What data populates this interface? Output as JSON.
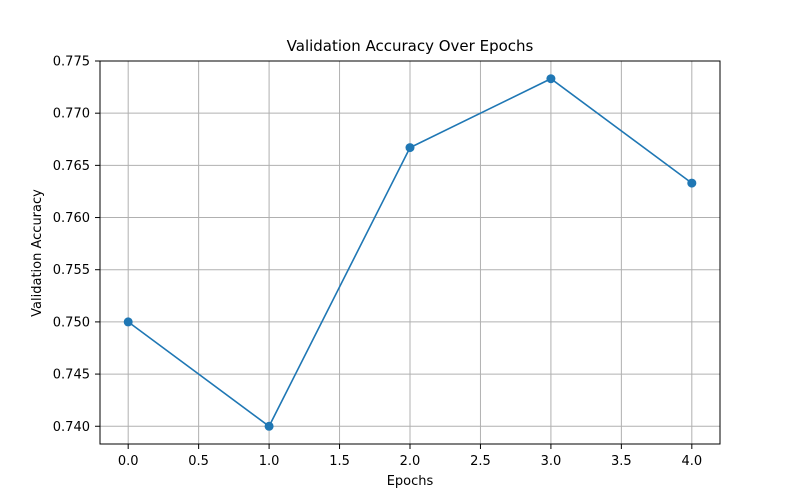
{
  "chart_data": {
    "type": "line",
    "title": "Validation Accuracy Over Epochs",
    "xlabel": "Epochs",
    "ylabel": "Validation Accuracy",
    "x": [
      0,
      1,
      2,
      3,
      4
    ],
    "series": [
      {
        "name": "Validation Accuracy",
        "values": [
          0.75,
          0.74,
          0.7667,
          0.7733,
          0.7633
        ],
        "color": "#1f77b4",
        "marker": "circle"
      }
    ],
    "xlim": [
      -0.2,
      4.2
    ],
    "ylim": [
      0.7383,
      0.775
    ],
    "xticks": [
      0.0,
      0.5,
      1.0,
      1.5,
      2.0,
      2.5,
      3.0,
      3.5,
      4.0
    ],
    "xtick_labels": [
      "0.0",
      "0.5",
      "1.0",
      "1.5",
      "2.0",
      "2.5",
      "3.0",
      "3.5",
      "4.0"
    ],
    "yticks": [
      0.74,
      0.745,
      0.75,
      0.755,
      0.76,
      0.765,
      0.77,
      0.775
    ],
    "ytick_labels": [
      "0.740",
      "0.745",
      "0.750",
      "0.755",
      "0.760",
      "0.765",
      "0.770",
      "0.775"
    ],
    "grid": true,
    "grid_color": "#b0b0b0"
  }
}
